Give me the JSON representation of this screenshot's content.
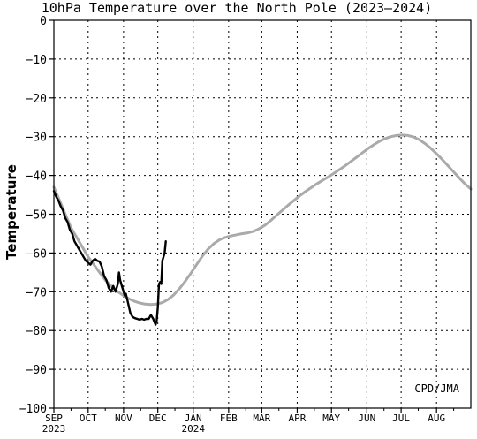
{
  "chart_data": {
    "type": "line",
    "title": "10hPa Temperature over the North Pole (2023–2024)",
    "ylabel": "Temperature",
    "xlabel": "",
    "credit": "CPD/JMA",
    "ylim": [
      -100,
      0
    ],
    "yticks": [
      0,
      -10,
      -20,
      -30,
      -40,
      -50,
      -60,
      -70,
      -80,
      -90,
      -100
    ],
    "xlim": [
      "2023-09-01",
      "2024-08-31"
    ],
    "xticks": [
      {
        "label": "SEP",
        "date": "2023-09-01",
        "year": "2023"
      },
      {
        "label": "OCT",
        "date": "2023-10-01"
      },
      {
        "label": "NOV",
        "date": "2023-11-01"
      },
      {
        "label": "DEC",
        "date": "2023-12-01"
      },
      {
        "label": "JAN",
        "date": "2024-01-01",
        "year": "2024"
      },
      {
        "label": "FEB",
        "date": "2024-02-01"
      },
      {
        "label": "MAR",
        "date": "2024-03-01"
      },
      {
        "label": "APR",
        "date": "2024-04-01"
      },
      {
        "label": "MAY",
        "date": "2024-05-01"
      },
      {
        "label": "JUN",
        "date": "2024-06-01"
      },
      {
        "label": "JUL",
        "date": "2024-07-01"
      },
      {
        "label": "AUG",
        "date": "2024-08-01"
      }
    ],
    "grid": true,
    "series": [
      {
        "color": "#aaaaaa",
        "points": [
          [
            "2023-09-01",
            -43
          ],
          [
            "2023-09-06",
            -46.5
          ],
          [
            "2023-09-11",
            -50
          ],
          [
            "2023-09-16",
            -53.5
          ],
          [
            "2023-09-21",
            -56
          ],
          [
            "2023-09-26",
            -58.5
          ],
          [
            "2023-10-01",
            -61
          ],
          [
            "2023-10-06",
            -63
          ],
          [
            "2023-10-11",
            -65
          ],
          [
            "2023-10-16",
            -67
          ],
          [
            "2023-10-21",
            -68.5
          ],
          [
            "2023-10-26",
            -69.8
          ],
          [
            "2023-10-31",
            -70.8
          ],
          [
            "2023-11-05",
            -71.7
          ],
          [
            "2023-11-10",
            -72.4
          ],
          [
            "2023-11-15",
            -72.9
          ],
          [
            "2023-11-20",
            -73.2
          ],
          [
            "2023-11-25",
            -73.3
          ],
          [
            "2023-11-30",
            -73.2
          ],
          [
            "2023-12-05",
            -72.8
          ],
          [
            "2023-12-10",
            -72
          ],
          [
            "2023-12-15",
            -70.8
          ],
          [
            "2023-12-20",
            -69.2
          ],
          [
            "2023-12-25",
            -67.3
          ],
          [
            "2023-12-30",
            -65.2
          ],
          [
            "2024-01-04",
            -63
          ],
          [
            "2024-01-09",
            -60.8
          ],
          [
            "2024-01-14",
            -59
          ],
          [
            "2024-01-19",
            -57.6
          ],
          [
            "2024-01-24",
            -56.6
          ],
          [
            "2024-01-29",
            -56
          ],
          [
            "2024-02-03",
            -55.6
          ],
          [
            "2024-02-08",
            -55.3
          ],
          [
            "2024-02-13",
            -55
          ],
          [
            "2024-02-18",
            -54.8
          ],
          [
            "2024-02-23",
            -54.4
          ],
          [
            "2024-02-28",
            -53.7
          ],
          [
            "2024-03-04",
            -52.8
          ],
          [
            "2024-03-09",
            -51.6
          ],
          [
            "2024-03-14",
            -50.3
          ],
          [
            "2024-03-19",
            -49
          ],
          [
            "2024-03-24",
            -47.7
          ],
          [
            "2024-03-29",
            -46.5
          ],
          [
            "2024-04-03",
            -45.3
          ],
          [
            "2024-04-08",
            -44.2
          ],
          [
            "2024-04-13",
            -43.2
          ],
          [
            "2024-04-18",
            -42.2
          ],
          [
            "2024-04-23",
            -41.3
          ],
          [
            "2024-04-28",
            -40.4
          ],
          [
            "2024-05-03",
            -39.5
          ],
          [
            "2024-05-08",
            -38.5
          ],
          [
            "2024-05-13",
            -37.5
          ],
          [
            "2024-05-18",
            -36.4
          ],
          [
            "2024-05-23",
            -35.3
          ],
          [
            "2024-05-28",
            -34.2
          ],
          [
            "2024-06-02",
            -33.1
          ],
          [
            "2024-06-07",
            -32.1
          ],
          [
            "2024-06-12",
            -31.2
          ],
          [
            "2024-06-17",
            -30.5
          ],
          [
            "2024-06-22",
            -30
          ],
          [
            "2024-06-27",
            -29.7
          ],
          [
            "2024-07-02",
            -29.6
          ],
          [
            "2024-07-07",
            -29.7
          ],
          [
            "2024-07-12",
            -30.1
          ],
          [
            "2024-07-17",
            -30.8
          ],
          [
            "2024-07-22",
            -31.8
          ],
          [
            "2024-07-27",
            -33
          ],
          [
            "2024-08-01",
            -34.4
          ],
          [
            "2024-08-06",
            -35.9
          ],
          [
            "2024-08-11",
            -37.5
          ],
          [
            "2024-08-16",
            -39.1
          ],
          [
            "2024-08-21",
            -40.7
          ],
          [
            "2024-08-26",
            -42.2
          ],
          [
            "2024-08-31",
            -43.5
          ]
        ]
      },
      {
        "color": "#000000",
        "points": [
          [
            "2023-09-01",
            -44
          ],
          [
            "2023-09-03",
            -45.5
          ],
          [
            "2023-09-05",
            -46.5
          ],
          [
            "2023-09-07",
            -48
          ],
          [
            "2023-09-09",
            -49
          ],
          [
            "2023-09-11",
            -51
          ],
          [
            "2023-09-13",
            -52
          ],
          [
            "2023-09-15",
            -54
          ],
          [
            "2023-09-17",
            -55
          ],
          [
            "2023-09-19",
            -57
          ],
          [
            "2023-09-21",
            -58
          ],
          [
            "2023-09-23",
            -59
          ],
          [
            "2023-09-25",
            -60
          ],
          [
            "2023-09-27",
            -61
          ],
          [
            "2023-09-29",
            -62
          ],
          [
            "2023-10-01",
            -62.5
          ],
          [
            "2023-10-03",
            -63
          ],
          [
            "2023-10-05",
            -62
          ],
          [
            "2023-10-07",
            -61.5
          ],
          [
            "2023-10-09",
            -62
          ],
          [
            "2023-10-11",
            -62.2
          ],
          [
            "2023-10-13",
            -63.5
          ],
          [
            "2023-10-15",
            -66
          ],
          [
            "2023-10-17",
            -67
          ],
          [
            "2023-10-19",
            -69
          ],
          [
            "2023-10-21",
            -70
          ],
          [
            "2023-10-23",
            -68.5
          ],
          [
            "2023-10-25",
            -70
          ],
          [
            "2023-10-27",
            -68
          ],
          [
            "2023-10-28",
            -65
          ],
          [
            "2023-10-29",
            -67
          ],
          [
            "2023-10-31",
            -69
          ],
          [
            "2023-11-02",
            -71
          ],
          [
            "2023-11-03",
            -70.5
          ],
          [
            "2023-11-05",
            -73
          ],
          [
            "2023-11-07",
            -75.5
          ],
          [
            "2023-11-09",
            -76.5
          ],
          [
            "2023-11-11",
            -76.8
          ],
          [
            "2023-11-13",
            -77
          ],
          [
            "2023-11-15",
            -77.2
          ],
          [
            "2023-11-17",
            -77
          ],
          [
            "2023-11-19",
            -77.2
          ],
          [
            "2023-11-21",
            -77
          ],
          [
            "2023-11-23",
            -77
          ],
          [
            "2023-11-25",
            -76
          ],
          [
            "2023-11-27",
            -77
          ],
          [
            "2023-11-29",
            -78.5
          ],
          [
            "2023-11-30",
            -77.5
          ],
          [
            "2023-12-01",
            -74
          ],
          [
            "2023-12-02",
            -68
          ],
          [
            "2023-12-03",
            -67.5
          ],
          [
            "2023-12-04",
            -68
          ],
          [
            "2023-12-05",
            -62
          ],
          [
            "2023-12-06",
            -61
          ],
          [
            "2023-12-07",
            -60
          ],
          [
            "2023-12-08",
            -57
          ]
        ]
      }
    ]
  }
}
